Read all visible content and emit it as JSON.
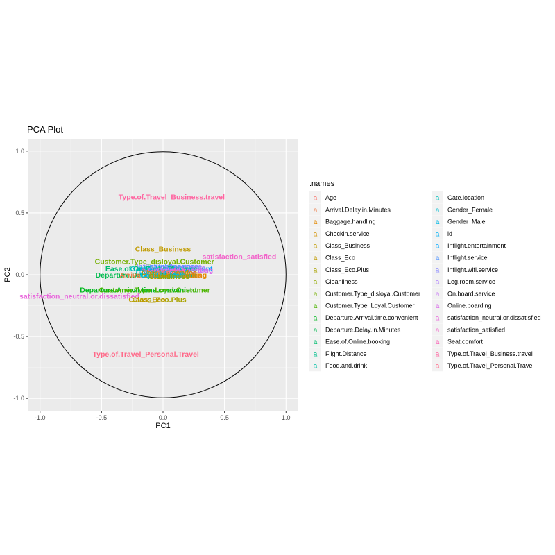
{
  "chart_data": {
    "type": "scatter",
    "title": "PCA Plot",
    "xlabel": "PC1",
    "ylabel": "PC2",
    "xlim": [
      -1.1,
      1.1
    ],
    "ylim": [
      -1.1,
      1.1
    ],
    "x_ticks": [
      -1.0,
      -0.5,
      0.0,
      0.5,
      1.0
    ],
    "y_ticks": [
      -1.0,
      -0.5,
      0.0,
      0.5,
      1.0
    ],
    "x_tick_labels": [
      "-1.0",
      "-0.5",
      "0.0",
      "0.5",
      "1.0"
    ],
    "y_tick_labels": [
      "-1.0",
      "-0.5",
      "0.0",
      "0.5",
      "1.0"
    ],
    "grid": true,
    "unit_circle": true,
    "legend_title": ".names",
    "legend_position": "right",
    "points": [
      {
        "name": "Age",
        "x": 0.0,
        "y": 0.02,
        "color": "#F8766D"
      },
      {
        "name": "Arrival.Delay.in.Minutes",
        "x": -0.02,
        "y": 0.0,
        "color": "#EF7F49"
      },
      {
        "name": "Baggage.handling",
        "x": 0.1,
        "y": 0.0,
        "color": "#E38900"
      },
      {
        "name": "Checkin.service",
        "x": 0.05,
        "y": 0.02,
        "color": "#D39200"
      },
      {
        "name": "Class_Business",
        "x": 0.0,
        "y": 0.21,
        "color": "#C09B00"
      },
      {
        "name": "Class_Eco",
        "x": -0.13,
        "y": -0.2,
        "color": "#C09B00"
      },
      {
        "name": "Class_Eco.Plus",
        "x": -0.03,
        "y": -0.2,
        "color": "#AAA300"
      },
      {
        "name": "Cleanliness",
        "x": 0.05,
        "y": -0.01,
        "color": "#93AA00"
      },
      {
        "name": "Customer.Type_disloyal.Customer",
        "x": -0.07,
        "y": 0.11,
        "color": "#75AF00"
      },
      {
        "name": "Customer.Type_Loyal.Customer",
        "x": -0.07,
        "y": -0.12,
        "color": "#4BB400"
      },
      {
        "name": "Departure.Arrival.time.convenient",
        "x": -0.2,
        "y": -0.12,
        "color": "#00B81F"
      },
      {
        "name": "Departure.Delay.in.Minutes",
        "x": -0.17,
        "y": 0.0,
        "color": "#00BB4E"
      },
      {
        "name": "Ease.of.Online.booking",
        "x": -0.14,
        "y": 0.05,
        "color": "#00BD6F"
      },
      {
        "name": "Flight.Distance",
        "x": 0.07,
        "y": 0.05,
        "color": "#00BF8C"
      },
      {
        "name": "Food.and.drink",
        "x": 0.06,
        "y": 0.0,
        "color": "#00C0A5"
      },
      {
        "name": "Gate.location",
        "x": -0.08,
        "y": 0.05,
        "color": "#00BFBC"
      },
      {
        "name": "Gender_Female",
        "x": 0.0,
        "y": 0.02,
        "color": "#00BDD2"
      },
      {
        "name": "Gender_Male",
        "x": 0.0,
        "y": 0.0,
        "color": "#00B8E5"
      },
      {
        "name": "id",
        "x": 0.0,
        "y": 0.01,
        "color": "#00B1F5"
      },
      {
        "name": "Inflight.entertainment",
        "x": 0.1,
        "y": 0.05,
        "color": "#00A7FF"
      },
      {
        "name": "Inflight.service",
        "x": 0.08,
        "y": 0.07,
        "color": "#5C9BFF"
      },
      {
        "name": "Inflight.wifi.service",
        "x": 0.05,
        "y": 0.07,
        "color": "#8E8DFF"
      },
      {
        "name": "Leg.room.service",
        "x": 0.1,
        "y": 0.06,
        "color": "#AF80FD"
      },
      {
        "name": "On.board.service",
        "x": 0.12,
        "y": 0.04,
        "color": "#C775F5"
      },
      {
        "name": "Online.boarding",
        "x": 0.18,
        "y": 0.04,
        "color": "#DA6CEA"
      },
      {
        "name": "satisfaction_neutral.or.dissatisfied",
        "x": -0.68,
        "y": -0.17,
        "color": "#E866DB"
      },
      {
        "name": "satisfaction_satisfied",
        "x": 0.62,
        "y": 0.15,
        "color": "#F264CA"
      },
      {
        "name": "Seat.comfort",
        "x": 0.0,
        "y": 0.03,
        "color": "#FA62B6"
      },
      {
        "name": "Type.of.Travel_Business.travel",
        "x": 0.07,
        "y": 0.63,
        "color": "#FF64A0"
      },
      {
        "name": "Type.of.Travel_Personal.Travel",
        "x": -0.14,
        "y": -0.64,
        "color": "#FF6888"
      }
    ],
    "labels": [
      {
        "text": "Type.of.Travel_Business.travel",
        "x": 0.07,
        "y": 0.63,
        "color": "#FF64A0"
      },
      {
        "text": "Class_Business",
        "x": 0.0,
        "y": 0.21,
        "color": "#C09B00"
      },
      {
        "text": "satisfaction_satisfied",
        "x": 0.62,
        "y": 0.15,
        "color": "#F264CA"
      },
      {
        "text": "Customer.Type_disloyal.Customer",
        "x": -0.07,
        "y": 0.11,
        "color": "#75AF00"
      },
      {
        "text": "Inflight.wifi.service",
        "x": 0.05,
        "y": 0.07,
        "color": "#8E8DFF"
      },
      {
        "text": "Inflight.service",
        "x": 0.08,
        "y": 0.07,
        "color": "#5C9BFF"
      },
      {
        "text": "Leg.room.service",
        "x": 0.1,
        "y": 0.06,
        "color": "#AF80FD"
      },
      {
        "text": "Ease.of.Online.booking",
        "x": -0.14,
        "y": 0.05,
        "color": "#00BD6F"
      },
      {
        "text": "Gate.location",
        "x": -0.08,
        "y": 0.05,
        "color": "#00BFBC"
      },
      {
        "text": "Inflight.entertainment",
        "x": 0.1,
        "y": 0.05,
        "color": "#00A7FF"
      },
      {
        "text": "Flight.Distance",
        "x": 0.07,
        "y": 0.05,
        "color": "#00BF8C"
      },
      {
        "text": "Online.boarding",
        "x": 0.18,
        "y": 0.04,
        "color": "#DA6CEA"
      },
      {
        "text": "On.board.service",
        "x": 0.12,
        "y": 0.04,
        "color": "#C775F5"
      },
      {
        "text": "Seat.comfort",
        "x": 0.0,
        "y": 0.03,
        "color": "#FA62B6"
      },
      {
        "text": "Gender_Female",
        "x": 0.0,
        "y": 0.02,
        "color": "#00BDD2"
      },
      {
        "text": "Checkin.service",
        "x": 0.05,
        "y": 0.02,
        "color": "#D39200"
      },
      {
        "text": "Age",
        "x": 0.0,
        "y": 0.02,
        "color": "#F8766D"
      },
      {
        "text": "id",
        "x": 0.0,
        "y": 0.01,
        "color": "#00B1F5"
      },
      {
        "text": "Departure.Delay.in.Minutes",
        "x": -0.17,
        "y": 0.0,
        "color": "#00BB4E"
      },
      {
        "text": "Arrival.Delay.in.Minutes",
        "x": -0.02,
        "y": 0.0,
        "color": "#EF7F49"
      },
      {
        "text": "Food.and.drink",
        "x": 0.06,
        "y": 0.0,
        "color": "#00C0A5"
      },
      {
        "text": "Baggage.handling",
        "x": 0.1,
        "y": 0.0,
        "color": "#E38900"
      },
      {
        "text": "Gender_Male",
        "x": 0.0,
        "y": 0.0,
        "color": "#00B8E5"
      },
      {
        "text": "Cleanliness",
        "x": 0.05,
        "y": -0.01,
        "color": "#93AA00"
      },
      {
        "text": "Departure.Arrival.time.convenient",
        "x": -0.2,
        "y": -0.12,
        "color": "#00B81F"
      },
      {
        "text": "Customer.Type_Loyal.Customer",
        "x": -0.07,
        "y": -0.12,
        "color": "#4BB400"
      },
      {
        "text": "satisfaction_neutral.or.dissatisfied",
        "x": -0.68,
        "y": -0.17,
        "color": "#E866DB"
      },
      {
        "text": "Class_Eco.Plus",
        "x": -0.03,
        "y": -0.2,
        "color": "#AAA300"
      },
      {
        "text": "Class_Eco",
        "x": -0.13,
        "y": -0.2,
        "color": "#C09B00"
      },
      {
        "text": "Type.of.Travel_Personal.Travel",
        "x": -0.14,
        "y": -0.64,
        "color": "#FF6888"
      }
    ],
    "legend_columns": [
      [
        {
          "name": "Age",
          "color": "#F8766D"
        },
        {
          "name": "Arrival.Delay.in.Minutes",
          "color": "#EF7F49"
        },
        {
          "name": "Baggage.handling",
          "color": "#E38900"
        },
        {
          "name": "Checkin.service",
          "color": "#D39200"
        },
        {
          "name": "Class_Business",
          "color": "#C09B00"
        },
        {
          "name": "Class_Eco",
          "color": "#C09B00"
        },
        {
          "name": "Class_Eco.Plus",
          "color": "#AAA300"
        },
        {
          "name": "Cleanliness",
          "color": "#93AA00"
        },
        {
          "name": "Customer.Type_disloyal.Customer",
          "color": "#75AF00"
        },
        {
          "name": "Customer.Type_Loyal.Customer",
          "color": "#4BB400"
        },
        {
          "name": "Departure.Arrival.time.convenient",
          "color": "#00B81F"
        },
        {
          "name": "Departure.Delay.in.Minutes",
          "color": "#00BB4E"
        },
        {
          "name": "Ease.of.Online.booking",
          "color": "#00BD6F"
        },
        {
          "name": "Flight.Distance",
          "color": "#00BF8C"
        },
        {
          "name": "Food.and.drink",
          "color": "#00C0A5"
        }
      ],
      [
        {
          "name": "Gate.location",
          "color": "#00BFBC"
        },
        {
          "name": "Gender_Female",
          "color": "#00BDD2"
        },
        {
          "name": "Gender_Male",
          "color": "#00B8E5"
        },
        {
          "name": "id",
          "color": "#00B1F5"
        },
        {
          "name": "Inflight.entertainment",
          "color": "#00A7FF"
        },
        {
          "name": "Inflight.service",
          "color": "#5C9BFF"
        },
        {
          "name": "Inflight.wifi.service",
          "color": "#8E8DFF"
        },
        {
          "name": "Leg.room.service",
          "color": "#AF80FD"
        },
        {
          "name": "On.board.service",
          "color": "#C775F5"
        },
        {
          "name": "Online.boarding",
          "color": "#DA6CEA"
        },
        {
          "name": "satisfaction_neutral.or.dissatisfied",
          "color": "#E866DB"
        },
        {
          "name": "satisfaction_satisfied",
          "color": "#F264CA"
        },
        {
          "name": "Seat.comfort",
          "color": "#FA62B6"
        },
        {
          "name": "Type.of.Travel_Business.travel",
          "color": "#FF64A0"
        },
        {
          "name": "Type.of.Travel_Personal.Travel",
          "color": "#FF6888"
        }
      ]
    ],
    "legend_key_glyph": "a"
  }
}
